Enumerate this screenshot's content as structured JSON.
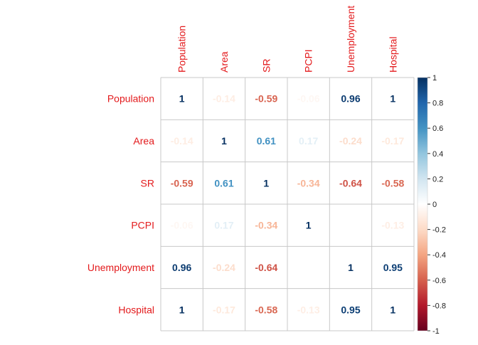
{
  "chart_data": {
    "type": "heatmap",
    "variables": [
      "Population",
      "Area",
      "SR",
      "PCPI",
      "Unemployment",
      "Hospital"
    ],
    "matrix": [
      [
        1,
        -0.14,
        -0.59,
        -0.06,
        0.96,
        1
      ],
      [
        -0.14,
        1,
        0.61,
        0.17,
        -0.24,
        -0.17
      ],
      [
        -0.59,
        0.61,
        1,
        -0.34,
        -0.64,
        -0.58
      ],
      [
        -0.06,
        0.17,
        -0.34,
        1,
        null,
        -0.13
      ],
      [
        0.96,
        -0.24,
        -0.64,
        null,
        1,
        0.95
      ],
      [
        1,
        -0.17,
        -0.58,
        -0.13,
        0.95,
        1
      ]
    ],
    "cell_labels": [
      [
        "1",
        "-0.14",
        "-0.59",
        "-0.06",
        "0.96",
        "1"
      ],
      [
        "-0.14",
        "1",
        "0.61",
        "0.17",
        "-0.24",
        "-0.17"
      ],
      [
        "-0.59",
        "0.61",
        "1",
        "-0.34",
        "-0.64",
        "-0.58"
      ],
      [
        "-0.06",
        "0.17",
        "-0.34",
        "1",
        "",
        "-0.13"
      ],
      [
        "0.96",
        "-0.24",
        "-0.64",
        "",
        "1",
        "0.95"
      ],
      [
        "1",
        "-0.17",
        "-0.58",
        "-0.13",
        "0.95",
        "1"
      ]
    ],
    "colorbar": {
      "range": [
        -1,
        1
      ],
      "ticks": [
        1,
        0.8,
        0.6,
        0.4,
        0.2,
        0,
        -0.2,
        -0.4,
        -0.6,
        -0.8,
        -1
      ],
      "tick_labels": [
        "1",
        "0.8",
        "0.6",
        "0.4",
        "0.2",
        "0",
        "-0.2",
        "-0.4",
        "-0.6",
        "-0.8",
        "-1"
      ],
      "placement": "right"
    },
    "colors": {
      "label": "#e31a1c",
      "grid": "#c8c8c8",
      "scale": [
        "#67001f",
        "#b2182b",
        "#d6604d",
        "#f4a582",
        "#fddbc7",
        "#ffffff",
        "#d1e5f0",
        "#92c5de",
        "#4393c3",
        "#2166ac",
        "#053061"
      ]
    }
  }
}
